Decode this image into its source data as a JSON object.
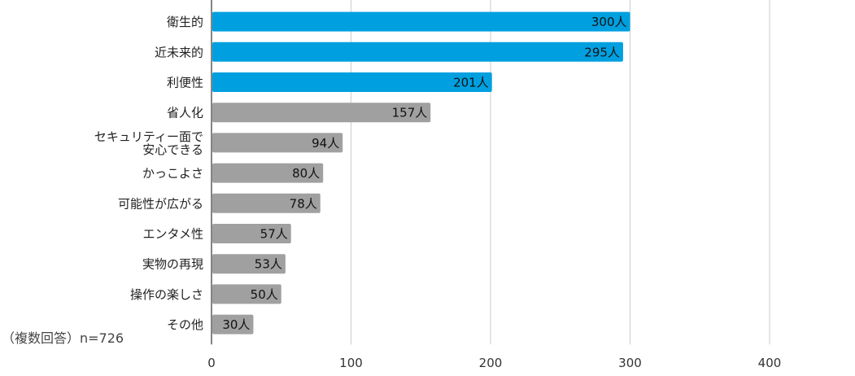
{
  "chart_data": {
    "type": "bar",
    "orientation": "horizontal",
    "categories": [
      [
        "衛生的"
      ],
      [
        "近未来的"
      ],
      [
        "利便性"
      ],
      [
        "省人化"
      ],
      [
        "セキュリティー面で",
        "安心できる"
      ],
      [
        "かっこよさ"
      ],
      [
        "可能性が広がる"
      ],
      [
        "エンタメ性"
      ],
      [
        "実物の再現"
      ],
      [
        "操作の楽しさ"
      ],
      [
        "その他"
      ]
    ],
    "values": [
      300,
      295,
      201,
      157,
      94,
      80,
      78,
      57,
      53,
      50,
      30
    ],
    "data_labels": [
      "300人",
      "295人",
      "201人",
      "157人",
      "94人",
      "80人",
      "78人",
      "57人",
      "53人",
      "50人",
      "30人"
    ],
    "highlight_count": 3,
    "colors": {
      "highlight": "#00a0e0",
      "normal": "#a0a0a0",
      "grid": "#cccccc",
      "axis": "#333333"
    },
    "xlim": [
      0,
      400
    ],
    "xticks": [
      "0",
      "100",
      "200",
      "300",
      "400"
    ],
    "grid": true,
    "title": "",
    "xlabel": "",
    "ylabel": ""
  },
  "note": "（複数回答）n=726"
}
